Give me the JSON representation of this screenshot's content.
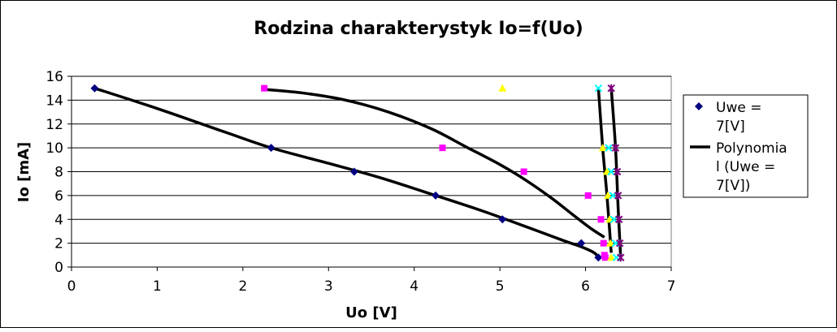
{
  "chart_data": {
    "type": "scatter",
    "title": "Rodzina charakterystyk Io=f(Uo)",
    "xlabel": "Uo [V]",
    "ylabel": "Io [mA]",
    "xlim": [
      0,
      7
    ],
    "ylim": [
      0,
      16
    ],
    "xticks": [
      "0",
      "1",
      "2",
      "3",
      "4",
      "5",
      "6",
      "7"
    ],
    "yticks": [
      "0",
      "2",
      "4",
      "6",
      "8",
      "10",
      "12",
      "14",
      "16"
    ],
    "grid": "horizontal",
    "legend_position": "right",
    "legend": [
      {
        "label_lines": [
          "Uwe =",
          "7[V]"
        ],
        "marker": "diamond",
        "color": "#000080"
      },
      {
        "label_lines": [
          "Polynomia",
          "l (Uwe =",
          "7[V])"
        ],
        "marker": "line",
        "color": "#000000"
      }
    ],
    "series": [
      {
        "name": "Uwe = 7[V]",
        "marker": "diamond",
        "color": "#000080",
        "x": [
          0.27,
          2.33,
          3.3,
          4.25,
          5.03,
          5.95,
          6.15
        ],
        "y": [
          15,
          10,
          8,
          6,
          4,
          2,
          0.8
        ]
      },
      {
        "marker": "square",
        "color": "#ff00ff",
        "x": [
          2.25,
          4.33,
          5.28,
          6.03,
          6.18,
          6.21,
          6.22,
          6.23
        ],
        "y": [
          15,
          10,
          8,
          6,
          4,
          2,
          1,
          0.8
        ]
      },
      {
        "marker": "triangle",
        "color": "#ffff00",
        "x": [
          5.03,
          6.2,
          6.25,
          6.26,
          6.28,
          6.29,
          6.3
        ],
        "y": [
          15,
          10,
          8,
          6,
          4,
          2,
          0.8
        ]
      },
      {
        "marker": "x",
        "color": "#00ffff",
        "x": [
          6.15,
          6.27,
          6.3,
          6.32,
          6.33,
          6.35,
          6.36
        ],
        "y": [
          15,
          10,
          8,
          6,
          4,
          2,
          0.8
        ]
      },
      {
        "marker": "star",
        "color": "#800080",
        "x": [
          6.3,
          6.35,
          6.37,
          6.38,
          6.39,
          6.4,
          6.41
        ],
        "y": [
          15,
          10,
          8,
          6,
          4,
          2,
          0.8
        ]
      }
    ],
    "trendlines": [
      {
        "x": [
          0.27,
          1.0,
          1.8,
          2.33,
          3.0,
          3.6,
          4.25,
          4.8,
          5.3,
          5.75,
          5.95,
          6.1,
          6.15
        ],
        "y": [
          15,
          13.3,
          11.3,
          10,
          8.7,
          7.5,
          6,
          4.7,
          3.4,
          2.2,
          1.7,
          1.2,
          0.8
        ]
      },
      {
        "x": [
          2.25,
          2.7,
          3.2,
          3.7,
          4.2,
          4.6,
          5.0,
          5.3,
          5.6,
          5.85,
          6.05,
          6.22
        ],
        "y": [
          14.9,
          14.6,
          14.0,
          13.0,
          11.6,
          10.1,
          8.6,
          7.3,
          5.8,
          4.4,
          3.3,
          2.5
        ]
      },
      {
        "x": [
          6.15,
          6.2,
          6.25,
          6.3
        ],
        "y": [
          15,
          10,
          6,
          1.2
        ]
      },
      {
        "x": [
          6.3,
          6.35,
          6.38,
          6.41
        ],
        "y": [
          15,
          10,
          5,
          0.8
        ]
      }
    ]
  }
}
